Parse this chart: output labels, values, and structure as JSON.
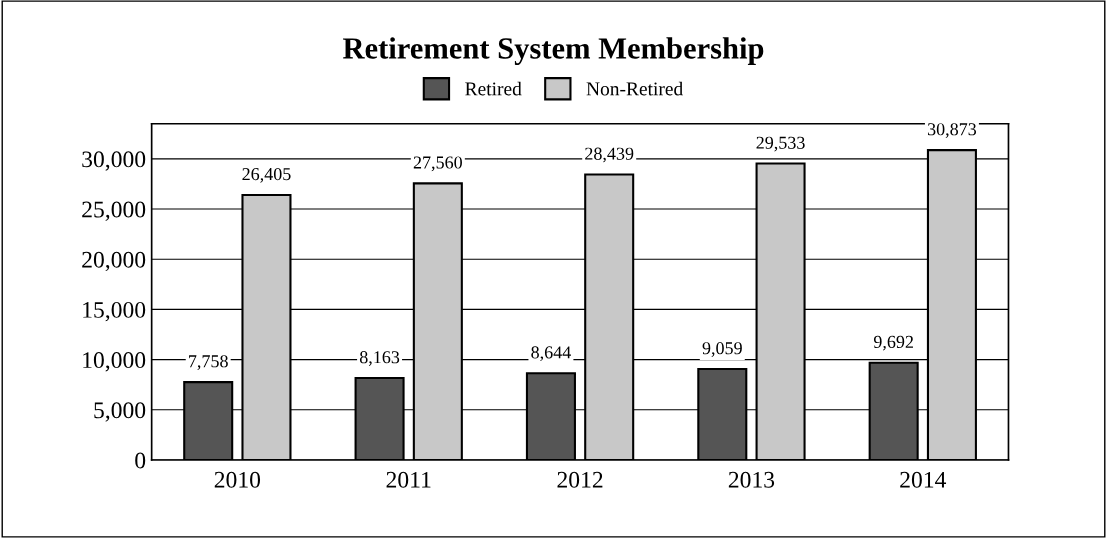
{
  "chart_data": {
    "type": "bar",
    "title": "Retirement System Membership",
    "categories": [
      "2010",
      "2011",
      "2012",
      "2013",
      "2014"
    ],
    "series": [
      {
        "name": "Retired",
        "color": "#555555",
        "values": [
          7758,
          8163,
          8644,
          9059,
          9692
        ],
        "value_labels": [
          "7,758",
          "8,163",
          "8,644",
          "9,059",
          "9,692"
        ]
      },
      {
        "name": "Non-Retired",
        "color": "#c8c8c8",
        "values": [
          26405,
          27560,
          28439,
          29533,
          30873
        ],
        "value_labels": [
          "26,405",
          "27,560",
          "28,439",
          "29,533",
          "30,873"
        ]
      }
    ],
    "ylim": [
      0,
      33500
    ],
    "yticks": [
      {
        "value": 0,
        "label": "0"
      },
      {
        "value": 5000,
        "label": "5,000"
      },
      {
        "value": 10000,
        "label": "10,000"
      },
      {
        "value": 15000,
        "label": "15,000"
      },
      {
        "value": 20000,
        "label": "20,000"
      },
      {
        "value": 25000,
        "label": "25,000"
      },
      {
        "value": 30000,
        "label": "30,000"
      }
    ],
    "grid": "y",
    "legend": "top"
  }
}
